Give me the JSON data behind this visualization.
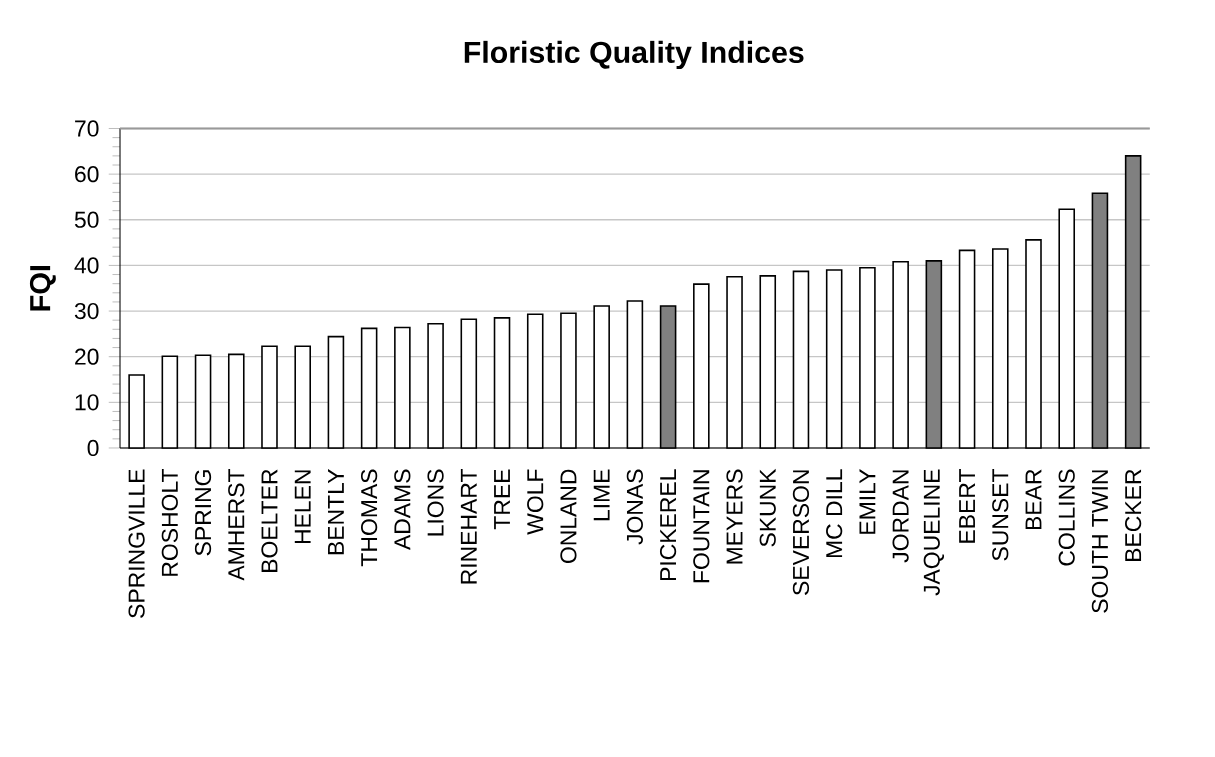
{
  "chart_data": {
    "type": "bar",
    "title": "Floristic Quality Indices",
    "ylabel": "FQI",
    "categories": [
      "SPRINGVILLE",
      "ROSHOLT",
      "SPRING",
      "AMHERST",
      "BOELTER",
      "HELEN",
      "BENTLY",
      "THOMAS",
      "ADAMS",
      "LIONS",
      "RINEHART",
      "TREE",
      "WOLF",
      "ONLAND",
      "LIME",
      "JONAS",
      "PICKEREL",
      "FOUNTAIN",
      "MEYERS",
      "SKUNK",
      "SEVERSON",
      "MC DILL",
      "EMILY",
      "JORDAN",
      "JAQUELINE",
      "EBERT",
      "SUNSET",
      "BEAR",
      "COLLINS",
      "SOUTH TWIN",
      "BECKER"
    ],
    "values": [
      16.0,
      20.1,
      20.3,
      20.5,
      22.3,
      22.3,
      24.4,
      26.2,
      26.4,
      27.2,
      28.2,
      28.5,
      29.3,
      29.5,
      31.1,
      32.2,
      31.1,
      35.9,
      37.5,
      37.7,
      38.7,
      39.0,
      39.5,
      40.8,
      41.0,
      43.3,
      43.6,
      45.6,
      52.3,
      55.8,
      64.0
    ],
    "colors": [
      "#ffffff",
      "#ffffff",
      "#ffffff",
      "#ffffff",
      "#ffffff",
      "#ffffff",
      "#ffffff",
      "#ffffff",
      "#ffffff",
      "#ffffff",
      "#ffffff",
      "#ffffff",
      "#ffffff",
      "#ffffff",
      "#ffffff",
      "#ffffff",
      "#808080",
      "#ffffff",
      "#ffffff",
      "#ffffff",
      "#ffffff",
      "#ffffff",
      "#ffffff",
      "#ffffff",
      "#808080",
      "#ffffff",
      "#ffffff",
      "#ffffff",
      "#ffffff",
      "#808080",
      "#808080"
    ],
    "ylim": [
      0,
      70
    ],
    "yticks": [
      0,
      10,
      20,
      30,
      40,
      50,
      60,
      70
    ],
    "grid": "y"
  }
}
